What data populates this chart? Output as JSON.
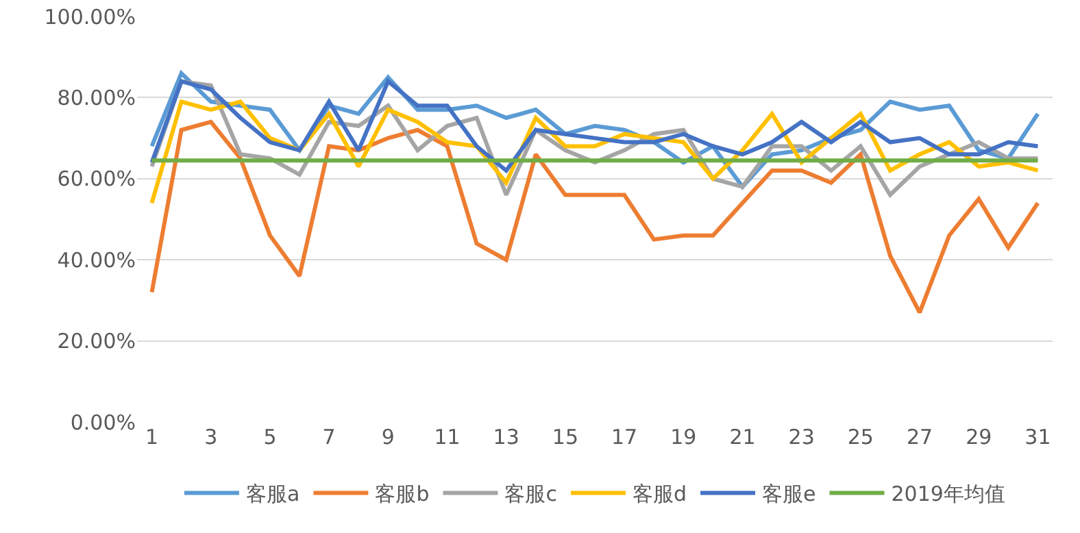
{
  "chart_data": {
    "type": "line",
    "x": [
      1,
      2,
      3,
      4,
      5,
      6,
      7,
      8,
      9,
      10,
      11,
      12,
      13,
      14,
      15,
      16,
      17,
      18,
      19,
      20,
      21,
      22,
      23,
      24,
      25,
      26,
      27,
      28,
      29,
      30,
      31
    ],
    "xlim": [
      0.5,
      31.5
    ],
    "xticks": [
      1,
      3,
      5,
      7,
      9,
      11,
      13,
      15,
      17,
      19,
      21,
      23,
      25,
      27,
      29,
      31
    ],
    "ylim": [
      0,
      100
    ],
    "yticks": [
      {
        "value": 0,
        "label": "0.00%"
      },
      {
        "value": 20,
        "label": "20.00%"
      },
      {
        "value": 40,
        "label": "40.00%"
      },
      {
        "value": 60,
        "label": "60.00%"
      },
      {
        "value": 80,
        "label": "80.00%"
      },
      {
        "value": 100,
        "label": "100.00%"
      }
    ],
    "grid": "y",
    "legend": "bottom",
    "marker": "none",
    "line_style": "solid",
    "series": [
      {
        "name": "客服a",
        "color": "#5b9bd5",
        "values": [
          68,
          86,
          79,
          78,
          77,
          67,
          78,
          76,
          85,
          77,
          77,
          78,
          75,
          77,
          71,
          73,
          72,
          69,
          64,
          68,
          58,
          66,
          67,
          70,
          72,
          79,
          77,
          78,
          67,
          65,
          76
        ]
      },
      {
        "name": "客服b",
        "color": "#ed7d31",
        "values": [
          32,
          72,
          74,
          65,
          46,
          36,
          68,
          67,
          70,
          72,
          68,
          44,
          40,
          66,
          56,
          56,
          56,
          45,
          46,
          46,
          54,
          62,
          62,
          59,
          66,
          41,
          27,
          46,
          55,
          43,
          54
        ]
      },
      {
        "name": "客服c",
        "color": "#a5a5a5",
        "values": [
          63,
          84,
          83,
          66,
          65,
          61,
          74,
          73,
          78,
          67,
          73,
          75,
          56,
          72,
          67,
          64,
          67,
          71,
          72,
          60,
          58,
          68,
          68,
          62,
          68,
          56,
          63,
          66,
          69,
          65,
          65
        ]
      },
      {
        "name": "客服d",
        "color": "#ffc000",
        "values": [
          54,
          79,
          77,
          79,
          70,
          67,
          76,
          63,
          77,
          74,
          69,
          68,
          59,
          75,
          68,
          68,
          71,
          70,
          69,
          60,
          67,
          76,
          64,
          70,
          76,
          62,
          66,
          69,
          63,
          64,
          62
        ]
      },
      {
        "name": "客服e",
        "color": "#4472c4",
        "values": [
          64,
          84,
          82,
          75,
          69,
          67,
          79,
          67,
          84,
          78,
          78,
          68,
          62,
          72,
          71,
          70,
          69,
          69,
          71,
          68,
          66,
          69,
          74,
          69,
          74,
          69,
          70,
          66,
          66,
          69,
          68
        ]
      },
      {
        "name": "2019年均值",
        "color": "#70ad47",
        "values": [
          64.5,
          64.5,
          64.5,
          64.5,
          64.5,
          64.5,
          64.5,
          64.5,
          64.5,
          64.5,
          64.5,
          64.5,
          64.5,
          64.5,
          64.5,
          64.5,
          64.5,
          64.5,
          64.5,
          64.5,
          64.5,
          64.5,
          64.5,
          64.5,
          64.5,
          64.5,
          64.5,
          64.5,
          64.5,
          64.5,
          64.5
        ]
      }
    ]
  }
}
